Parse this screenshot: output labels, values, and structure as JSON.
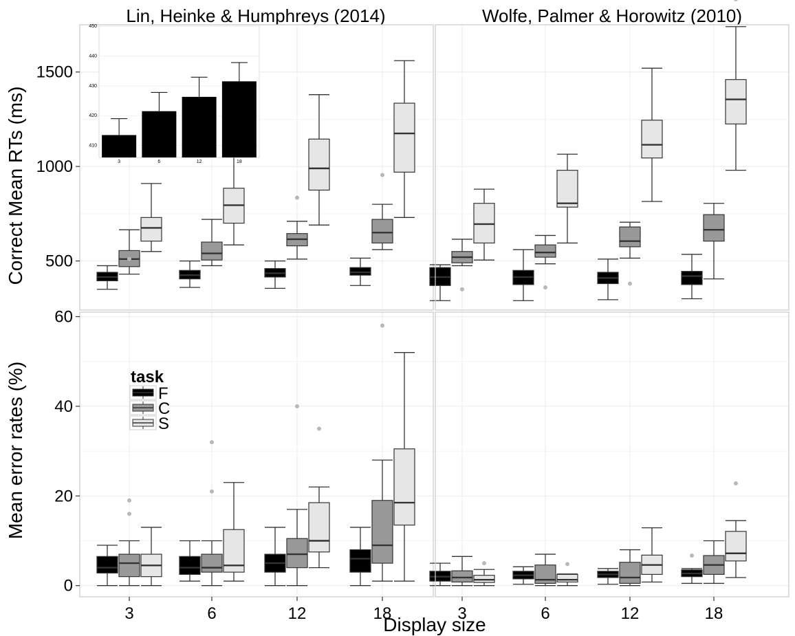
{
  "chart_data": {
    "type": "boxplot",
    "xlabel": "Display size",
    "categories": [
      "3",
      "6",
      "12",
      "18"
    ],
    "legend": {
      "title": "task",
      "placement": "inside-left",
      "entries": [
        {
          "label": "F",
          "color": "#000000"
        },
        {
          "label": "C",
          "color": "#999999"
        },
        {
          "label": "S",
          "color": "#e6e6e6"
        }
      ]
    },
    "grid": true,
    "facet_columns": [
      "Lin, Heinke & Humphreys (2014)",
      "Wolfe, Palmer & Horowitz (2010)"
    ],
    "rows": [
      {
        "ylabel": "Correct Mean RTs (ms)",
        "ylim": [
          240,
          1750
        ],
        "yticks": [
          500,
          1000,
          1500
        ],
        "panels": [
          {
            "facet": "Lin, Heinke & Humphreys (2014)",
            "series": [
              {
                "name": "F",
                "boxes": [
                  {
                    "min": 350,
                    "q1": 395,
                    "median": 415,
                    "q3": 440,
                    "max": 475,
                    "outliers": []
                  },
                  {
                    "min": 360,
                    "q1": 405,
                    "median": 425,
                    "q3": 450,
                    "max": 500,
                    "outliers": []
                  },
                  {
                    "min": 355,
                    "q1": 415,
                    "median": 435,
                    "q3": 460,
                    "max": 500,
                    "outliers": []
                  },
                  {
                    "min": 370,
                    "q1": 425,
                    "median": 440,
                    "q3": 465,
                    "max": 515,
                    "outliers": []
                  }
                ]
              },
              {
                "name": "C",
                "boxes": [
                  {
                    "min": 430,
                    "q1": 470,
                    "median": 510,
                    "q3": 555,
                    "max": 665,
                    "outliers": [
                      510
                    ]
                  },
                  {
                    "min": 475,
                    "q1": 505,
                    "median": 540,
                    "q3": 600,
                    "max": 720,
                    "outliers": []
                  },
                  {
                    "min": 510,
                    "q1": 580,
                    "median": 615,
                    "q3": 645,
                    "max": 710,
                    "outliers": [
                      835
                    ]
                  },
                  {
                    "min": 560,
                    "q1": 595,
                    "median": 650,
                    "q3": 720,
                    "max": 800,
                    "outliers": [
                      955
                    ]
                  }
                ]
              },
              {
                "name": "S",
                "boxes": [
                  {
                    "min": 550,
                    "q1": 605,
                    "median": 675,
                    "q3": 730,
                    "max": 910,
                    "outliers": []
                  },
                  {
                    "min": 585,
                    "q1": 700,
                    "median": 795,
                    "q3": 885,
                    "max": 1060,
                    "outliers": []
                  },
                  {
                    "min": 690,
                    "q1": 875,
                    "median": 990,
                    "q3": 1145,
                    "max": 1380,
                    "outliers": []
                  },
                  {
                    "min": 730,
                    "q1": 970,
                    "median": 1175,
                    "q3": 1335,
                    "max": 1560,
                    "outliers": []
                  }
                ]
              }
            ]
          },
          {
            "facet": "Wolfe, Palmer & Horowitz (2010)",
            "series": [
              {
                "name": "F",
                "boxes": [
                  {
                    "min": 290,
                    "q1": 370,
                    "median": 415,
                    "q3": 465,
                    "max": 480,
                    "outliers": []
                  },
                  {
                    "min": 290,
                    "q1": 375,
                    "median": 415,
                    "q3": 450,
                    "max": 560,
                    "outliers": []
                  },
                  {
                    "min": 295,
                    "q1": 380,
                    "median": 410,
                    "q3": 440,
                    "max": 510,
                    "outliers": []
                  },
                  {
                    "min": 300,
                    "q1": 375,
                    "median": 420,
                    "q3": 445,
                    "max": 535,
                    "outliers": []
                  }
                ]
              },
              {
                "name": "C",
                "boxes": [
                  {
                    "min": 475,
                    "q1": 490,
                    "median": 520,
                    "q3": 550,
                    "max": 615,
                    "outliers": [
                      350
                    ]
                  },
                  {
                    "min": 485,
                    "q1": 520,
                    "median": 545,
                    "q3": 585,
                    "max": 635,
                    "outliers": [
                      360
                    ]
                  },
                  {
                    "min": 515,
                    "q1": 575,
                    "median": 605,
                    "q3": 680,
                    "max": 705,
                    "outliers": [
                      380
                    ]
                  },
                  {
                    "min": 405,
                    "q1": 605,
                    "median": 665,
                    "q3": 745,
                    "max": 805,
                    "outliers": []
                  }
                ]
              },
              {
                "name": "S",
                "boxes": [
                  {
                    "min": 505,
                    "q1": 595,
                    "median": 695,
                    "q3": 805,
                    "max": 880,
                    "outliers": []
                  },
                  {
                    "min": 595,
                    "q1": 785,
                    "median": 805,
                    "q3": 980,
                    "max": 1065,
                    "outliers": []
                  },
                  {
                    "min": 815,
                    "q1": 1045,
                    "median": 1115,
                    "q3": 1245,
                    "max": 1520,
                    "outliers": []
                  },
                  {
                    "min": 980,
                    "q1": 1225,
                    "median": 1355,
                    "q3": 1460,
                    "max": 1740,
                    "outliers": [
                      1885
                    ]
                  }
                ]
              }
            ]
          }
        ]
      },
      {
        "ylabel": "Mean error rates (%)",
        "ylim": [
          -2.5,
          61
        ],
        "yticks": [
          0,
          20,
          40,
          60
        ],
        "panels": [
          {
            "facet": "Lin, Heinke & Humphreys (2014)",
            "series": [
              {
                "name": "F",
                "boxes": [
                  {
                    "min": 0,
                    "q1": 2.8,
                    "median": 4,
                    "q3": 6.5,
                    "max": 9,
                    "outliers": []
                  },
                  {
                    "min": 1,
                    "q1": 2.5,
                    "median": 4,
                    "q3": 6.5,
                    "max": 10,
                    "outliers": []
                  },
                  {
                    "min": 0,
                    "q1": 3,
                    "median": 5,
                    "q3": 7,
                    "max": 13,
                    "outliers": []
                  },
                  {
                    "min": 0,
                    "q1": 3,
                    "median": 6,
                    "q3": 8,
                    "max": 13,
                    "outliers": []
                  }
                ]
              },
              {
                "name": "C",
                "boxes": [
                  {
                    "min": 0,
                    "q1": 2,
                    "median": 5,
                    "q3": 7,
                    "max": 10,
                    "outliers": [
                      16,
                      19
                    ]
                  },
                  {
                    "min": 0,
                    "q1": 3,
                    "median": 4,
                    "q3": 7,
                    "max": 10,
                    "outliers": [
                      21,
                      32
                    ]
                  },
                  {
                    "min": 0,
                    "q1": 4,
                    "median": 7,
                    "q3": 10.5,
                    "max": 17,
                    "outliers": [
                      40
                    ]
                  },
                  {
                    "min": 1,
                    "q1": 5,
                    "median": 9,
                    "q3": 19,
                    "max": 28,
                    "outliers": [
                      58
                    ]
                  }
                ]
              },
              {
                "name": "S",
                "boxes": [
                  {
                    "min": 0,
                    "q1": 2,
                    "median": 4.5,
                    "q3": 7,
                    "max": 13,
                    "outliers": []
                  },
                  {
                    "min": 1,
                    "q1": 3,
                    "median": 4.5,
                    "q3": 12.5,
                    "max": 23,
                    "outliers": []
                  },
                  {
                    "min": 4,
                    "q1": 7.5,
                    "median": 10,
                    "q3": 18.5,
                    "max": 22,
                    "outliers": [
                      35
                    ]
                  },
                  {
                    "min": 1,
                    "q1": 13.5,
                    "median": 18.5,
                    "q3": 30.5,
                    "max": 52,
                    "outliers": []
                  }
                ]
              }
            ]
          },
          {
            "facet": "Wolfe, Palmer & Horowitz (2010)",
            "series": [
              {
                "name": "F",
                "boxes": [
                  {
                    "min": 0,
                    "q1": 1,
                    "median": 2,
                    "q3": 3.2,
                    "max": 5,
                    "outliers": []
                  },
                  {
                    "min": 0.3,
                    "q1": 1.5,
                    "median": 2.3,
                    "q3": 3.2,
                    "max": 4.2,
                    "outliers": []
                  },
                  {
                    "min": 0.3,
                    "q1": 1.8,
                    "median": 2.5,
                    "q3": 3.2,
                    "max": 3.8,
                    "outliers": []
                  },
                  {
                    "min": 0.5,
                    "q1": 2,
                    "median": 2.7,
                    "q3": 3.5,
                    "max": 3.8,
                    "outliers": [
                      6.7
                    ]
                  }
                ]
              },
              {
                "name": "C",
                "boxes": [
                  {
                    "min": 0,
                    "q1": 0.8,
                    "median": 1.8,
                    "q3": 3.3,
                    "max": 6.5,
                    "outliers": []
                  },
                  {
                    "min": 0,
                    "q1": 0.5,
                    "median": 1.3,
                    "q3": 4.6,
                    "max": 7,
                    "outliers": []
                  },
                  {
                    "min": 0,
                    "q1": 0.5,
                    "median": 1.8,
                    "q3": 5.2,
                    "max": 8,
                    "outliers": []
                  },
                  {
                    "min": 0.5,
                    "q1": 2.5,
                    "median": 4.6,
                    "q3": 6.7,
                    "max": 10,
                    "outliers": []
                  }
                ]
              },
              {
                "name": "S",
                "boxes": [
                  {
                    "min": 0,
                    "q1": 0.7,
                    "median": 1.3,
                    "q3": 2.3,
                    "max": 3.6,
                    "outliers": [
                      5
                    ]
                  },
                  {
                    "min": 0,
                    "q1": 0.8,
                    "median": 1.3,
                    "q3": 2.5,
                    "max": 2.6,
                    "outliers": [
                      4.8
                    ]
                  },
                  {
                    "min": 0.8,
                    "q1": 2.5,
                    "median": 4.6,
                    "q3": 6.8,
                    "max": 12.9,
                    "outliers": []
                  },
                  {
                    "min": 1.8,
                    "q1": 5.5,
                    "median": 7.2,
                    "q3": 12.1,
                    "max": 14.5,
                    "outliers": [
                      22.8
                    ]
                  }
                ]
              }
            ]
          }
        ]
      }
    ],
    "inset": {
      "type": "bar",
      "categories": [
        "3",
        "6",
        "12",
        "18"
      ],
      "values": [
        413.5,
        421.5,
        426.3,
        431.5
      ],
      "errors": [
        5.5,
        6.3,
        6.6,
        6.3
      ],
      "ylim": [
        406,
        450
      ],
      "yticks": [
        410,
        420,
        430,
        440,
        450
      ],
      "color": "#000000"
    }
  }
}
